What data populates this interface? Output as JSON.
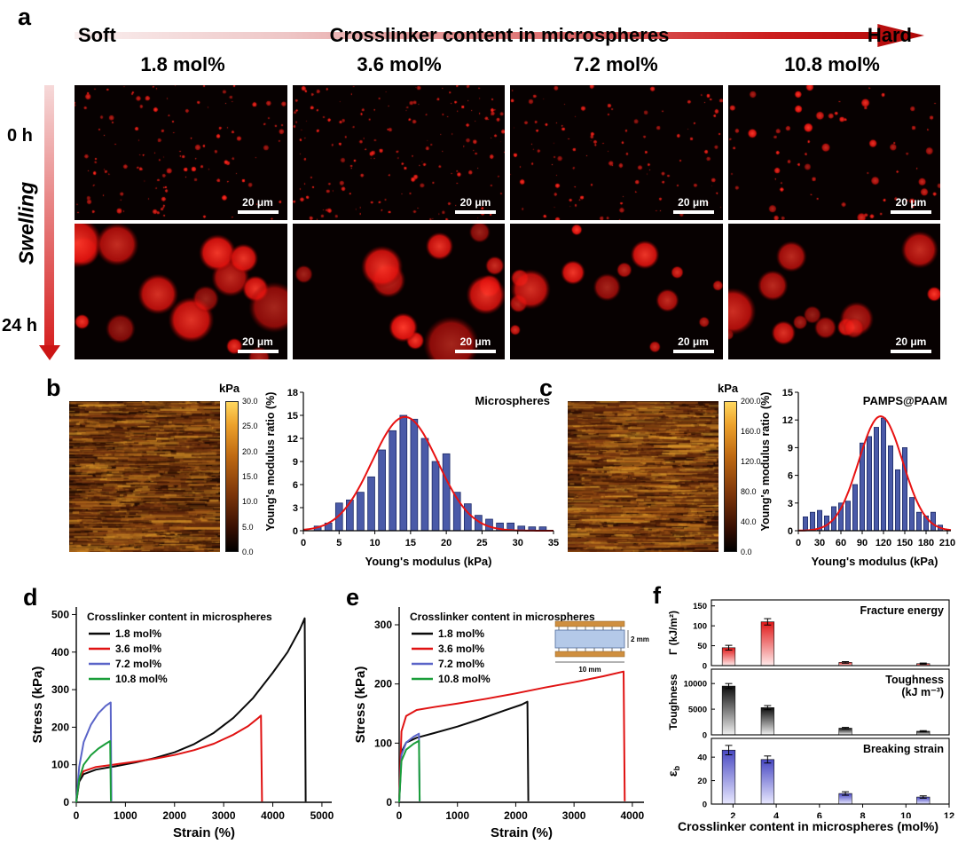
{
  "panel_a": {
    "label": "a",
    "arrow_left": "Soft",
    "arrow_title": "Crosslinker content in microspheres",
    "arrow_right": "Hard",
    "columns": [
      "1.8 mol%",
      "3.6 mol%",
      "7.2 mol%",
      "10.8 mol%"
    ],
    "row_labels": [
      "0 h",
      "24 h"
    ],
    "axis_label": "Swelling",
    "scale_bar_label": "20 μm"
  },
  "panel_b": {
    "label": "b",
    "colorbar_title": "kPa",
    "colorbar_ticks": [
      "30.0",
      "25.0",
      "20.0",
      "15.0",
      "10.0",
      "5.0",
      "0.0"
    ]
  },
  "panel_c": {
    "label": "c",
    "colorbar_title": "kPa",
    "colorbar_ticks": [
      "200.0",
      "160.0",
      "120.0",
      "80.0",
      "40.0",
      "0.0"
    ]
  },
  "panel_d": {
    "label": "d"
  },
  "panel_e": {
    "label": "e"
  },
  "panel_f": {
    "label": "f"
  },
  "chart_data": {
    "histogram_b": {
      "type": "bar",
      "title": "Microspheres",
      "xlabel": "Young's modulus (kPa)",
      "ylabel": "Young's modulus ratio (%)",
      "xlim": [
        0,
        35
      ],
      "ylim": [
        0,
        18
      ],
      "xticks": [
        0,
        5,
        10,
        15,
        20,
        25,
        30,
        35
      ],
      "yticks": [
        0,
        3,
        6,
        9,
        12,
        15,
        18
      ],
      "bar_color": "#4a5aa8",
      "bar_x": [
        2,
        3.5,
        5,
        6.5,
        8,
        9.5,
        11,
        12.5,
        14,
        15.5,
        17,
        18.5,
        20,
        21.5,
        23,
        24.5,
        26,
        27.5,
        29,
        30.5,
        32,
        33.5
      ],
      "bar_y": [
        0.6,
        1.0,
        3.6,
        4.0,
        5.0,
        7.0,
        10.5,
        13.0,
        15.0,
        14.5,
        12.0,
        9.0,
        10.0,
        5.0,
        3.5,
        2.0,
        1.5,
        1.0,
        1.0,
        0.6,
        0.5,
        0.5
      ],
      "fit": {
        "peak": 14.8,
        "center": 14.2,
        "sigma": 4.6,
        "color": "#e81212"
      }
    },
    "histogram_c": {
      "type": "bar",
      "title": "PAMPS@PAAM",
      "xlabel": "Young's modulus (kPa)",
      "ylabel": "Young's modulus ratio (%)",
      "xlim": [
        0,
        215
      ],
      "ylim": [
        0,
        15
      ],
      "xticks": [
        0,
        30,
        60,
        90,
        120,
        150,
        180,
        210
      ],
      "yticks": [
        0,
        3,
        6,
        9,
        12,
        15
      ],
      "bar_color": "#4a5aa8",
      "bar_x": [
        10,
        20,
        30,
        40,
        50,
        60,
        70,
        80,
        90,
        100,
        110,
        120,
        130,
        140,
        150,
        160,
        170,
        180,
        190,
        200
      ],
      "bar_y": [
        1.5,
        2.0,
        2.2,
        1.6,
        2.6,
        3.0,
        3.2,
        5.0,
        9.5,
        10.2,
        11.2,
        12.2,
        9.2,
        6.6,
        9.0,
        3.6,
        2.0,
        1.6,
        2.0,
        0.6
      ],
      "fit": {
        "peak": 12.4,
        "center": 116,
        "sigma": 31,
        "color": "#e81212"
      }
    },
    "stress_strain_d": {
      "type": "line",
      "xlabel": "Strain (%)",
      "ylabel": "Stress (kPa)",
      "xlim": [
        0,
        5200
      ],
      "ylim": [
        0,
        520
      ],
      "xticks": [
        0,
        1000,
        2000,
        3000,
        4000,
        5000
      ],
      "yticks": [
        0,
        100,
        200,
        300,
        400,
        500
      ],
      "legend": {
        "title": "Crosslinker content in microspheres",
        "entries": [
          {
            "label": "1.8 mol%",
            "color": "#0a0a0a"
          },
          {
            "label": "3.6 mol%",
            "color": "#e01212"
          },
          {
            "label": "7.2 mol%",
            "color": "#5a64c8"
          },
          {
            "label": "10.8 mol%",
            "color": "#1a9e3a"
          }
        ]
      },
      "series": [
        {
          "name": "1.8 mol%",
          "color": "#0a0a0a",
          "points": [
            [
              0,
              0
            ],
            [
              60,
              55
            ],
            [
              150,
              75
            ],
            [
              400,
              87
            ],
            [
              800,
              96
            ],
            [
              1200,
              106
            ],
            [
              1600,
              118
            ],
            [
              2000,
              133
            ],
            [
              2400,
              155
            ],
            [
              2800,
              185
            ],
            [
              3200,
              225
            ],
            [
              3600,
              278
            ],
            [
              4000,
              345
            ],
            [
              4300,
              400
            ],
            [
              4550,
              460
            ],
            [
              4650,
              490
            ],
            [
              4670,
              2
            ]
          ]
        },
        {
          "name": "3.6 mol%",
          "color": "#e01212",
          "points": [
            [
              0,
              0
            ],
            [
              60,
              65
            ],
            [
              150,
              83
            ],
            [
              400,
              94
            ],
            [
              800,
              101
            ],
            [
              1200,
              108
            ],
            [
              1600,
              116
            ],
            [
              2000,
              126
            ],
            [
              2400,
              139
            ],
            [
              2800,
              156
            ],
            [
              3200,
              180
            ],
            [
              3500,
              203
            ],
            [
              3700,
              224
            ],
            [
              3760,
              231
            ],
            [
              3780,
              2
            ]
          ]
        },
        {
          "name": "7.2 mol%",
          "color": "#5a64c8",
          "points": [
            [
              0,
              0
            ],
            [
              60,
              95
            ],
            [
              150,
              160
            ],
            [
              300,
              207
            ],
            [
              450,
              237
            ],
            [
              600,
              257
            ],
            [
              700,
              266
            ],
            [
              715,
              3
            ]
          ]
        },
        {
          "name": "10.8 mol%",
          "color": "#1a9e3a",
          "points": [
            [
              0,
              0
            ],
            [
              60,
              62
            ],
            [
              150,
              100
            ],
            [
              300,
              126
            ],
            [
              450,
              143
            ],
            [
              600,
              156
            ],
            [
              690,
              163
            ],
            [
              705,
              3
            ]
          ]
        }
      ]
    },
    "stress_strain_e": {
      "type": "line",
      "xlabel": "Strain (%)",
      "ylabel": "Stress (kPa)",
      "xlim": [
        0,
        4200
      ],
      "ylim": [
        0,
        330
      ],
      "xticks": [
        0,
        1000,
        2000,
        3000,
        4000
      ],
      "yticks": [
        0,
        100,
        200,
        300
      ],
      "legend": {
        "title": "Crosslinker content in microspheres",
        "entries": [
          {
            "label": "1.8 mol%",
            "color": "#0a0a0a"
          },
          {
            "label": "3.6 mol%",
            "color": "#e01212"
          },
          {
            "label": "7.2 mol%",
            "color": "#5a64c8"
          },
          {
            "label": "10.8 mol%",
            "color": "#1a9e3a"
          }
        ]
      },
      "inset": {
        "height_label": "2 mm",
        "width_label": "10 mm"
      },
      "series": [
        {
          "name": "1.8 mol%",
          "color": "#0a0a0a",
          "points": [
            [
              0,
              0
            ],
            [
              40,
              85
            ],
            [
              120,
              101
            ],
            [
              300,
              109
            ],
            [
              600,
              117
            ],
            [
              1000,
              128
            ],
            [
              1400,
              141
            ],
            [
              1800,
              155
            ],
            [
              2100,
              165
            ],
            [
              2200,
              170
            ],
            [
              2215,
              2
            ]
          ]
        },
        {
          "name": "3.6 mol%",
          "color": "#e01212",
          "points": [
            [
              0,
              0
            ],
            [
              40,
              120
            ],
            [
              120,
              146
            ],
            [
              300,
              156
            ],
            [
              600,
              161
            ],
            [
              1000,
              167
            ],
            [
              1500,
              175
            ],
            [
              2000,
              184
            ],
            [
              2500,
              194
            ],
            [
              3000,
              203
            ],
            [
              3500,
              213
            ],
            [
              3850,
              221
            ],
            [
              3870,
              2
            ]
          ]
        },
        {
          "name": "7.2 mol%",
          "color": "#5a64c8",
          "points": [
            [
              0,
              0
            ],
            [
              40,
              80
            ],
            [
              120,
              101
            ],
            [
              250,
              111
            ],
            [
              340,
              116
            ],
            [
              352,
              2
            ]
          ]
        },
        {
          "name": "10.8 mol%",
          "color": "#1a9e3a",
          "points": [
            [
              0,
              0
            ],
            [
              40,
              70
            ],
            [
              120,
              89
            ],
            [
              250,
              99
            ],
            [
              340,
              104
            ],
            [
              352,
              2
            ]
          ]
        }
      ]
    },
    "bars_f": {
      "type": "bar",
      "xlabel": "Crosslinker content in microspheres (mol%)",
      "categories": [
        1.8,
        3.6,
        7.2,
        10.8
      ],
      "xlim": [
        1,
        12
      ],
      "xticks": [
        2,
        4,
        6,
        8,
        10,
        12
      ],
      "subplots": [
        {
          "name": "fracture-energy",
          "ylabel": "Γ (kJ/m²)",
          "annotation": [
            "Fracture energy"
          ],
          "values": [
            45,
            110,
            8,
            5
          ],
          "errors": [
            6,
            8,
            2,
            1.5
          ],
          "ylim": [
            0,
            165
          ],
          "yticks": [
            0,
            50,
            100,
            150
          ],
          "bar_gradient": [
            "#e01818",
            "#ffeaea"
          ]
        },
        {
          "name": "toughness",
          "ylabel": "Toughness",
          "annotation": [
            "Toughness",
            "(kJ m⁻³)"
          ],
          "values": [
            9500,
            5300,
            1300,
            700
          ],
          "errors": [
            500,
            400,
            150,
            120
          ],
          "ylim": [
            0,
            12800
          ],
          "yticks": [
            0,
            5000,
            10000
          ],
          "bar_gradient": [
            "#0c0c0c",
            "#f0f0f0"
          ]
        },
        {
          "name": "breaking-strain",
          "ylabel": "ε",
          "ylabel_sub": "b",
          "annotation": [
            "Breaking strain"
          ],
          "values": [
            46,
            38,
            9,
            6
          ],
          "errors": [
            4,
            3,
            1.5,
            1
          ],
          "ylim": [
            0,
            56
          ],
          "yticks": [
            0,
            20,
            40
          ],
          "bar_gradient": [
            "#4848c2",
            "#e9e9ff"
          ]
        }
      ]
    }
  }
}
